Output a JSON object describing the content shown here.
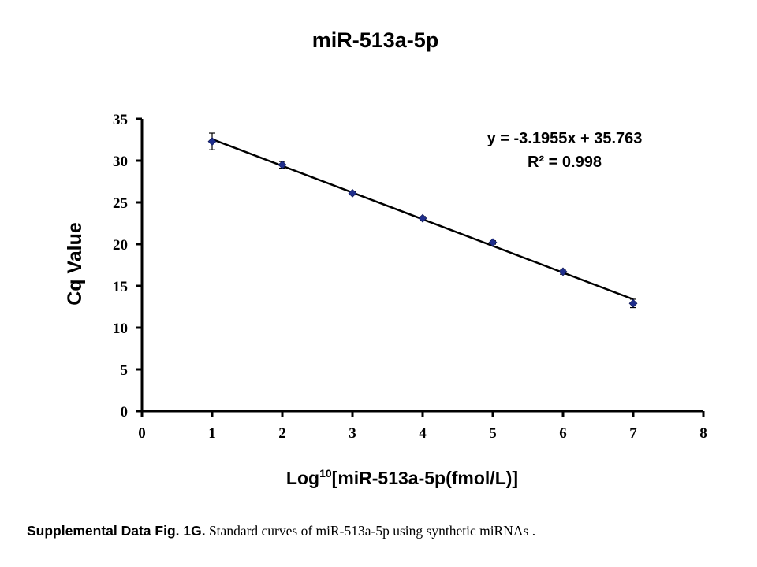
{
  "chart_data": {
    "type": "scatter",
    "title": "miR-513a-5p",
    "xlabel_prefix": "Log",
    "xlabel_superscript": "10",
    "xlabel_rest": "[miR-513a-5p(fmol/L)]",
    "ylabel": "Cq Value",
    "xlim": [
      0,
      8
    ],
    "ylim": [
      0,
      35
    ],
    "x_ticks": [
      "0",
      "1",
      "2",
      "3",
      "4",
      "5",
      "6",
      "7",
      "8"
    ],
    "y_ticks": [
      "0",
      "5",
      "10",
      "15",
      "20",
      "25",
      "30",
      "35"
    ],
    "grid": false,
    "legend": "none",
    "series": [
      {
        "x": [
          1,
          2,
          3,
          4,
          5,
          6,
          7
        ],
        "y": [
          32.3,
          29.5,
          26.1,
          23.1,
          20.2,
          16.7,
          12.9
        ],
        "error": [
          1.0,
          0.4,
          0.2,
          0.2,
          0.2,
          0.3,
          0.5
        ],
        "color": "#1f2e8c"
      }
    ],
    "trendline": {
      "slope": -3.1955,
      "intercept": 35.763,
      "x_range": [
        1,
        7
      ],
      "equation": "y = -3.1955x + 35.763",
      "r_squared": "R² = 0.998"
    }
  },
  "caption": {
    "label": "Supplemental Data Fig. 1G.",
    "text": " Standard curves of miR-513a-5p using synthetic miRNAs ."
  }
}
